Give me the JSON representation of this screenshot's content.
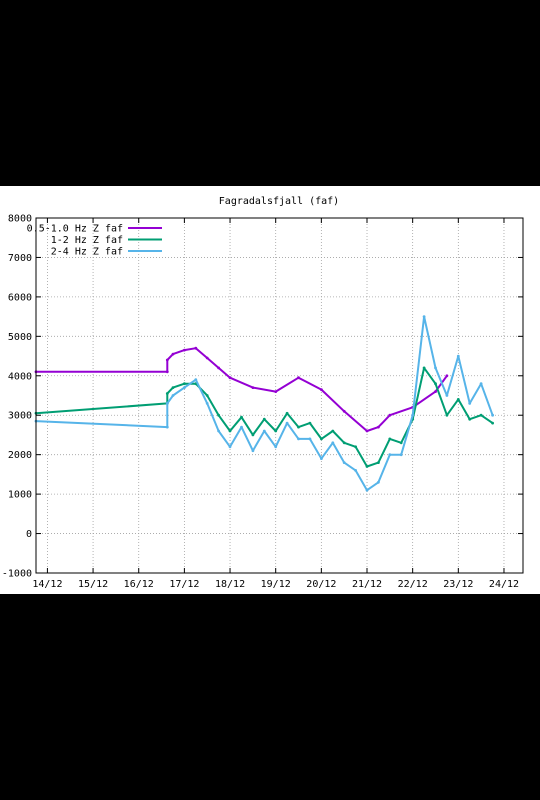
{
  "chart_data": {
    "type": "line",
    "title": "Fagradalsfjall (faf)",
    "xlabel": "",
    "ylabel": "",
    "x_ticks": [
      "14/12",
      "15/12",
      "16/12",
      "17/12",
      "18/12",
      "19/12",
      "20/12",
      "21/12",
      "22/12",
      "23/12",
      "24/12"
    ],
    "xlim": [
      "13/12 18:00",
      "24/12 10:00"
    ],
    "y_ticks": [
      -1000,
      0,
      1000,
      2000,
      3000,
      4000,
      5000,
      6000,
      7000,
      8000
    ],
    "ylim": [
      -1000,
      8000
    ],
    "grid": true,
    "legend_position": "top-left",
    "series": [
      {
        "name": "0.5-1.0 Hz Z faf",
        "color": "#9400d3",
        "x": [
          "13/12 18:00",
          "16/12 15:00",
          "16/12 15:00",
          "16/12 18:00",
          "17/12 00:00",
          "17/12 06:00",
          "17/12 12:00",
          "17/12 18:00",
          "18/12 00:00",
          "18/12 12:00",
          "19/12 00:00",
          "19/12 12:00",
          "20/12 00:00",
          "20/12 12:00",
          "21/12 00:00",
          "21/12 06:00",
          "21/12 12:00",
          "22/12 00:00",
          "22/12 12:00",
          "22/12 18:00"
        ],
        "y": [
          4100,
          4100,
          4400,
          4550,
          4650,
          4700,
          4450,
          4200,
          3950,
          3700,
          3600,
          3950,
          3650,
          3100,
          2600,
          2700,
          3000,
          3200,
          3600,
          4000
        ]
      },
      {
        "name": "1-2 Hz Z faf",
        "color": "#009e73",
        "x": [
          "13/12 18:00",
          "16/12 15:00",
          "16/12 15:00",
          "16/12 18:00",
          "17/12 00:00",
          "17/12 06:00",
          "17/12 12:00",
          "17/12 18:00",
          "18/12 00:00",
          "18/12 06:00",
          "18/12 12:00",
          "18/12 18:00",
          "19/12 00:00",
          "19/12 06:00",
          "19/12 12:00",
          "19/12 18:00",
          "20/12 00:00",
          "20/12 06:00",
          "20/12 12:00",
          "20/12 18:00",
          "21/12 00:00",
          "21/12 06:00",
          "21/12 12:00",
          "21/12 18:00",
          "22/12 00:00",
          "22/12 06:00",
          "22/12 12:00",
          "22/12 18:00",
          "23/12 00:00",
          "23/12 06:00",
          "23/12 12:00",
          "23/12 18:00"
        ],
        "y": [
          3050,
          3300,
          3550,
          3700,
          3800,
          3800,
          3500,
          3000,
          2600,
          2950,
          2500,
          2900,
          2600,
          3050,
          2700,
          2800,
          2400,
          2600,
          2300,
          2200,
          1700,
          1800,
          2400,
          2300,
          2900,
          4200,
          3800,
          3000,
          3400,
          2900,
          3000,
          2800
        ]
      },
      {
        "name": "2-4 Hz Z faf",
        "color": "#56b4e9",
        "x": [
          "13/12 18:00",
          "16/12 15:00",
          "16/12 15:00",
          "16/12 18:00",
          "17/12 00:00",
          "17/12 06:00",
          "17/12 12:00",
          "17/12 18:00",
          "18/12 00:00",
          "18/12 06:00",
          "18/12 12:00",
          "18/12 18:00",
          "19/12 00:00",
          "19/12 06:00",
          "19/12 12:00",
          "19/12 18:00",
          "20/12 00:00",
          "20/12 06:00",
          "20/12 12:00",
          "20/12 18:00",
          "21/12 00:00",
          "21/12 06:00",
          "21/12 12:00",
          "21/12 18:00",
          "22/12 00:00",
          "22/12 06:00",
          "22/12 12:00",
          "22/12 18:00",
          "23/12 00:00",
          "23/12 06:00",
          "23/12 12:00",
          "23/12 18:00"
        ],
        "y": [
          2850,
          2700,
          3300,
          3500,
          3700,
          3900,
          3300,
          2600,
          2200,
          2700,
          2100,
          2600,
          2200,
          2800,
          2400,
          2400,
          1900,
          2300,
          1800,
          1600,
          1100,
          1300,
          2000,
          2000,
          3000,
          5500,
          4200,
          3500,
          4500,
          3300,
          3800,
          3000
        ]
      }
    ]
  }
}
